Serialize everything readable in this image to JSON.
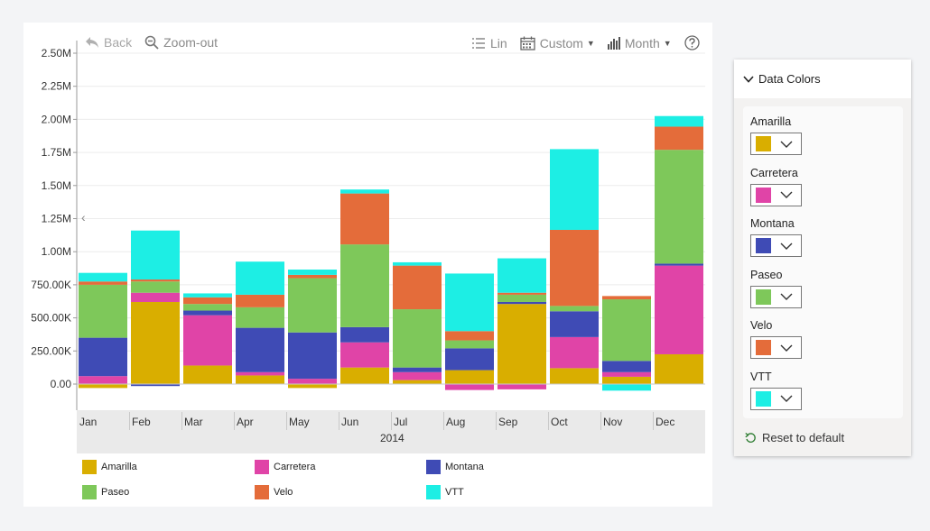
{
  "toolbar": {
    "back_label": "Back",
    "zoom_out_label": "Zoom-out",
    "scale_label": "Lin",
    "range_label": "Custom",
    "period_label": "Month"
  },
  "chart_data": {
    "type": "bar",
    "stacked": true,
    "categories": [
      "Jan",
      "Feb",
      "Mar",
      "Apr",
      "May",
      "Jun",
      "Jul",
      "Aug",
      "Sep",
      "Oct",
      "Nov",
      "Dec"
    ],
    "x_group_label": "2014",
    "ylim": [
      -100000,
      2500000
    ],
    "y_ticks": [
      0,
      250000,
      500000,
      750000,
      1000000,
      1250000,
      1500000,
      1750000,
      2000000,
      2250000,
      2500000
    ],
    "y_tick_labels": [
      "0.00",
      "250.00K",
      "500.00K",
      "750.00K",
      "1.00M",
      "1.25M",
      "1.50M",
      "1.75M",
      "2.00M",
      "2.25M",
      "2.50M"
    ],
    "grid": true,
    "legend_position": "bottom",
    "series": [
      {
        "name": "Amarilla",
        "color": "#d9ae00",
        "values": [
          -30000,
          620000,
          140000,
          65000,
          -30000,
          125000,
          30000,
          105000,
          605000,
          120000,
          55000,
          225000
        ]
      },
      {
        "name": "Carretera",
        "color": "#e044a7",
        "values": [
          60000,
          70000,
          380000,
          25000,
          40000,
          190000,
          60000,
          -45000,
          -40000,
          235000,
          35000,
          670000
        ]
      },
      {
        "name": "Montana",
        "color": "#3f4bb5",
        "values": [
          290000,
          -15000,
          35000,
          335000,
          350000,
          115000,
          35000,
          165000,
          15000,
          195000,
          85000,
          15000
        ]
      },
      {
        "name": "Paseo",
        "color": "#7ec85a",
        "values": [
          400000,
          85000,
          50000,
          155000,
          410000,
          625000,
          440000,
          60000,
          55000,
          40000,
          465000,
          860000
        ]
      },
      {
        "name": "Velo",
        "color": "#e46c3a",
        "values": [
          25000,
          15000,
          50000,
          95000,
          25000,
          385000,
          330000,
          70000,
          15000,
          575000,
          25000,
          175000
        ]
      },
      {
        "name": "VTT",
        "color": "#1deee4",
        "values": [
          65000,
          370000,
          30000,
          250000,
          40000,
          30000,
          25000,
          435000,
          260000,
          610000,
          -50000,
          80000
        ]
      }
    ]
  },
  "panel": {
    "title": "Data Colors",
    "reset_label": "Reset to default",
    "items": [
      {
        "label": "Amarilla",
        "color": "#d9ae00"
      },
      {
        "label": "Carretera",
        "color": "#e044a7"
      },
      {
        "label": "Montana",
        "color": "#3f4bb5"
      },
      {
        "label": "Paseo",
        "color": "#7ec85a"
      },
      {
        "label": "Velo",
        "color": "#e46c3a"
      },
      {
        "label": "VTT",
        "color": "#1deee4"
      }
    ]
  }
}
